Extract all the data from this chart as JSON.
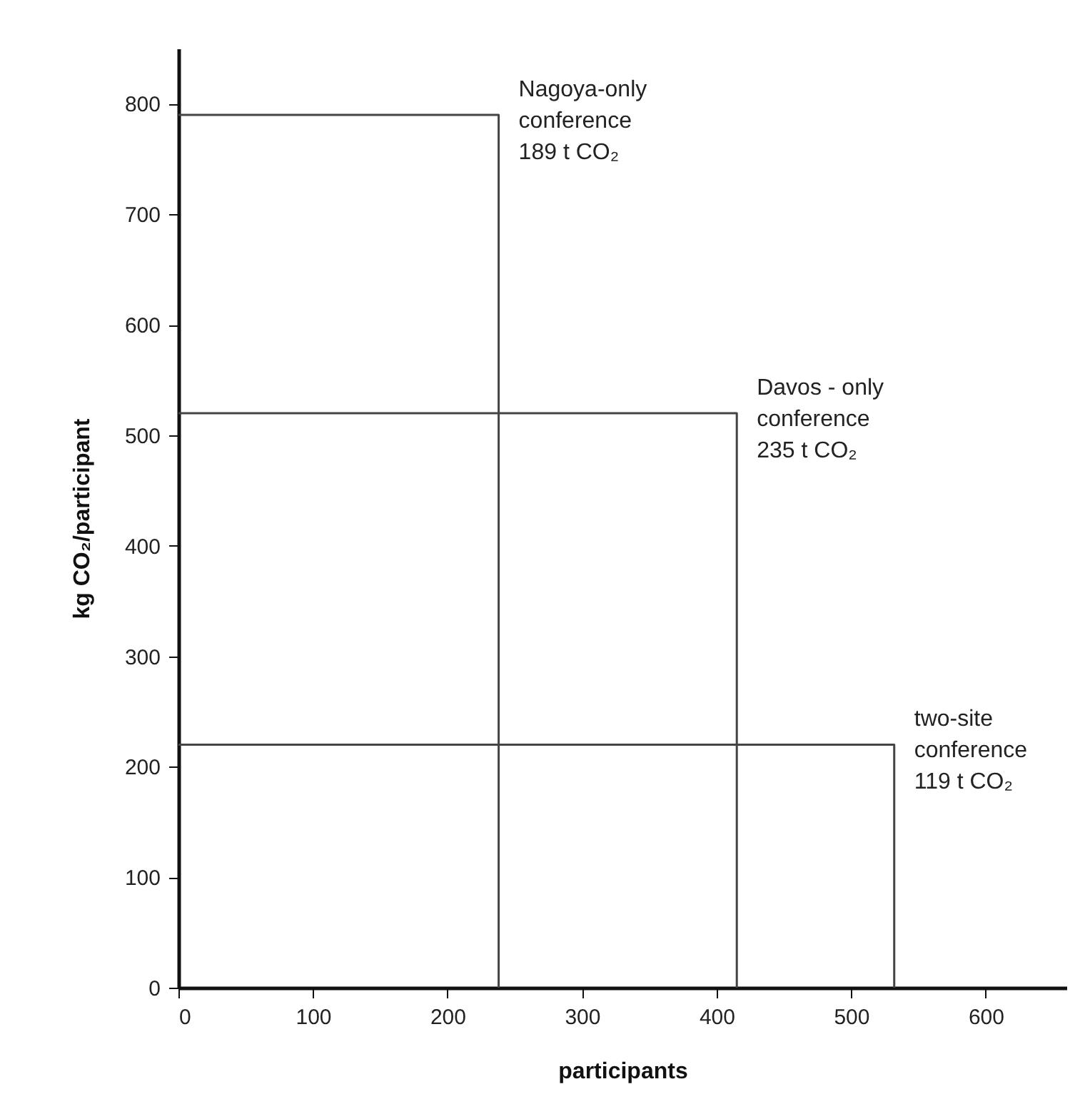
{
  "chart_data": {
    "type": "line",
    "xlabel": "participants",
    "ylabel": "kg CO₂/participant",
    "xlim": [
      0,
      660
    ],
    "ylim": [
      0,
      850
    ],
    "xticks": [
      0,
      100,
      200,
      300,
      400,
      500,
      600
    ],
    "yticks": [
      0,
      100,
      200,
      300,
      400,
      500,
      600,
      700,
      800
    ],
    "grid": false,
    "marker": "none",
    "line_style": "solid",
    "series": [
      {
        "color": "#444444",
        "x": [
          0,
          238,
          238
        ],
        "values": [
          790,
          790,
          0
        ]
      },
      {
        "color": "#444444",
        "x": [
          0,
          415,
          415
        ],
        "values": [
          520,
          520,
          0
        ]
      },
      {
        "color": "#444444",
        "x": [
          0,
          532,
          532
        ],
        "values": [
          220,
          220,
          0
        ]
      }
    ],
    "annotations": [
      {
        "text": "Nagoya-only\nconference\n189 t CO₂",
        "x": 238,
        "y": 790
      },
      {
        "text": "Davos - only\nconference\n235 t CO₂",
        "x": 415,
        "y": 520
      },
      {
        "text": "two-site\nconference\n119 t CO₂",
        "x": 532,
        "y": 220
      }
    ]
  }
}
